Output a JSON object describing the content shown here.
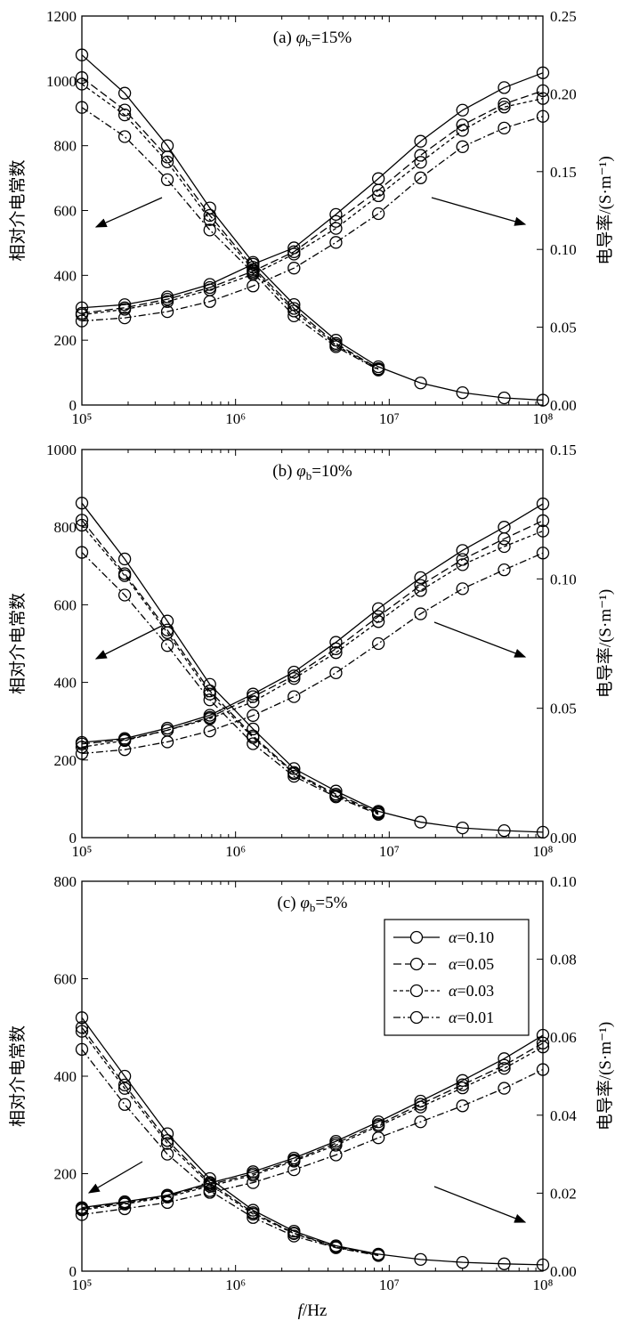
{
  "chart_data": [
    {
      "type": "line",
      "title_prefix": "(a) ",
      "title_symbol": "φ",
      "title_sub": "b",
      "title_suffix": "=15%",
      "xlabel": "f/Hz",
      "ylabel_left": "相对介电常数",
      "ylabel_right": "电导率/(S·m⁻¹)",
      "x_scale": "log",
      "xlim": [
        100000,
        100000000
      ],
      "x_ticks": [
        "10⁵",
        "10⁶",
        "10⁷",
        "10⁸"
      ],
      "ylim_left": [
        0,
        1200
      ],
      "yticks_left": [
        "0",
        "200",
        "400",
        "600",
        "800",
        "1000",
        "1200"
      ],
      "ylim_right": [
        0,
        0.25
      ],
      "yticks_right": [
        "0.00",
        "0.05",
        "0.10",
        "0.15",
        "0.20",
        "0.25"
      ],
      "x": [
        100000,
        190000,
        360000,
        680000,
        1300000,
        2400000,
        4500000,
        8500000,
        16000000,
        30000000,
        56000000,
        100000000
      ],
      "permittivity": [
        {
          "name": "α=0.10",
          "values": [
            1080,
            962,
            800,
            608,
            440,
            310,
            200,
            118,
            68,
            38,
            22,
            15
          ]
        },
        {
          "name": "α=0.05",
          "values": [
            1010,
            910,
            765,
            585,
            425,
            298,
            190,
            112
          ]
        },
        {
          "name": "α=0.03",
          "values": [
            990,
            895,
            750,
            572,
            418,
            290,
            185,
            110
          ]
        },
        {
          "name": "α=0.01",
          "values": [
            918,
            828,
            695,
            540,
            408,
            275,
            180,
            108
          ]
        }
      ],
      "conductivity": [
        {
          "name": "α=0.10",
          "values": [
            0.0625,
            0.0645,
            0.0695,
            0.0775,
            0.0905,
            0.101,
            0.1225,
            0.1455,
            0.1695,
            0.1895,
            0.204,
            0.2135
          ]
        },
        {
          "name": "α=0.05",
          "values": [
            0.059,
            0.0625,
            0.068,
            0.0755,
            0.086,
            0.0985,
            0.118,
            0.138,
            0.1605,
            0.18,
            0.1935,
            0.202
          ]
        },
        {
          "name": "α=0.03",
          "values": [
            0.058,
            0.0615,
            0.0665,
            0.074,
            0.084,
            0.097,
            0.1135,
            0.1345,
            0.156,
            0.1765,
            0.1915,
            0.197
          ]
        },
        {
          "name": "α=0.01",
          "values": [
            0.054,
            0.056,
            0.06,
            0.0665,
            0.0765,
            0.088,
            0.1045,
            0.123,
            0.146,
            0.166,
            0.178,
            0.1855
          ]
        }
      ]
    },
    {
      "type": "line",
      "title_prefix": "(b) ",
      "title_symbol": "φ",
      "title_sub": "b",
      "title_suffix": "=10%",
      "xlabel": "",
      "ylabel_left": "相对介电常数",
      "ylabel_right": "电导率/(S·m⁻¹)",
      "x_scale": "log",
      "xlim": [
        100000,
        100000000
      ],
      "x_ticks": [
        "10⁵",
        "10⁶",
        "10⁷",
        "10⁸"
      ],
      "ylim_left": [
        0,
        1000
      ],
      "yticks_left": [
        "0",
        "200",
        "400",
        "600",
        "800",
        "1000"
      ],
      "ylim_right": [
        0,
        0.15
      ],
      "yticks_right": [
        "0.00",
        "0.05",
        "0.10",
        "0.15"
      ],
      "x": [
        100000,
        190000,
        360000,
        680000,
        1300000,
        2400000,
        4500000,
        8500000,
        16000000,
        30000000,
        56000000,
        100000000
      ],
      "permittivity": [
        {
          "name": "α=0.10",
          "values": [
            862,
            718,
            558,
            395,
            280,
            178,
            120,
            68,
            40,
            25,
            18,
            14
          ]
        },
        {
          "name": "α=0.05",
          "values": [
            818,
            680,
            535,
            378,
            262,
            168,
            112,
            65
          ]
        },
        {
          "name": "α=0.03",
          "values": [
            805,
            675,
            528,
            370,
            258,
            165,
            108,
            63
          ]
        },
        {
          "name": "α=0.01",
          "values": [
            735,
            625,
            495,
            355,
            242,
            158,
            105,
            60
          ]
        }
      ],
      "conductivity": [
        {
          "name": "α=0.10",
          "values": [
            0.0368,
            0.0383,
            0.0423,
            0.0473,
            0.0555,
            0.064,
            0.0755,
            0.0885,
            0.1005,
            0.111,
            0.12,
            0.129
          ]
        },
        {
          "name": "α=0.05",
          "values": [
            0.0362,
            0.0378,
            0.0415,
            0.0465,
            0.0545,
            0.0625,
            0.073,
            0.0855,
            0.0975,
            0.1075,
            0.1155,
            0.1225
          ]
        },
        {
          "name": "α=0.03",
          "values": [
            0.035,
            0.0375,
            0.0415,
            0.046,
            0.0525,
            0.0615,
            0.0715,
            0.0835,
            0.0955,
            0.1055,
            0.1125,
            0.1185
          ]
        },
        {
          "name": "α=0.01",
          "values": [
            0.0325,
            0.034,
            0.037,
            0.0412,
            0.0472,
            0.0545,
            0.0637,
            0.075,
            0.0865,
            0.0962,
            0.1035,
            0.11
          ]
        }
      ]
    },
    {
      "type": "line",
      "title_prefix": "(c) ",
      "title_symbol": "φ",
      "title_sub": "b",
      "title_suffix": "=5%",
      "xlabel": "f/Hz",
      "ylabel_left": "相对介电常数",
      "ylabel_right": "电导率/(S·m⁻¹)",
      "x_scale": "log",
      "xlim": [
        100000,
        100000000
      ],
      "x_ticks": [
        "10⁵",
        "10⁶",
        "10⁷",
        "10⁸"
      ],
      "ylim_left": [
        0,
        800
      ],
      "yticks_left": [
        "0",
        "200",
        "400",
        "600",
        "800"
      ],
      "ylim_right": [
        0,
        0.1
      ],
      "yticks_right": [
        "0.00",
        "0.02",
        "0.04",
        "0.06",
        "0.08",
        "0.10"
      ],
      "legend": {
        "placement": "upper-right",
        "entries": [
          {
            "symbol": "α",
            "text": "=0.10",
            "dash": "solid"
          },
          {
            "symbol": "α",
            "text": "=0.05",
            "dash": "dashed"
          },
          {
            "symbol": "α",
            "text": "=0.03",
            "dash": "dotted"
          },
          {
            "symbol": "α",
            "text": "=0.01",
            "dash": "dashdot"
          }
        ]
      },
      "x": [
        100000,
        190000,
        360000,
        680000,
        1300000,
        2400000,
        4500000,
        8500000,
        16000000,
        30000000,
        56000000,
        100000000
      ],
      "permittivity": [
        {
          "name": "α=0.10",
          "values": [
            520,
            400,
            282,
            190,
            125,
            82,
            52,
            35,
            24,
            18,
            15,
            13
          ]
        },
        {
          "name": "α=0.05",
          "values": [
            500,
            382,
            268,
            182,
            120,
            78,
            50,
            34
          ]
        },
        {
          "name": "α=0.03",
          "values": [
            492,
            375,
            262,
            178,
            117,
            77,
            49,
            33
          ]
        },
        {
          "name": "α=0.01",
          "values": [
            455,
            342,
            240,
            165,
            110,
            72,
            48,
            32
          ]
        }
      ],
      "conductivity": [
        {
          "name": "α=0.10",
          "values": [
            0.0163,
            0.0178,
            0.0195,
            0.0226,
            0.0255,
            0.029,
            0.0333,
            0.0383,
            0.0436,
            0.0489,
            0.0545,
            0.0605
          ]
        },
        {
          "name": "α=0.05",
          "values": [
            0.016,
            0.0175,
            0.0193,
            0.0222,
            0.025,
            0.0285,
            0.0328,
            0.0376,
            0.0428,
            0.0478,
            0.0528,
            0.0585
          ]
        },
        {
          "name": "α=0.03",
          "values": [
            0.0157,
            0.0172,
            0.019,
            0.0218,
            0.0246,
            0.0282,
            0.0323,
            0.0372,
            0.0421,
            0.047,
            0.052,
            0.0575
          ]
        },
        {
          "name": "α=0.01",
          "values": [
            0.0145,
            0.016,
            0.0176,
            0.0202,
            0.0227,
            0.026,
            0.0298,
            0.0342,
            0.0383,
            0.0424,
            0.0469,
            0.0517
          ]
        }
      ]
    }
  ]
}
